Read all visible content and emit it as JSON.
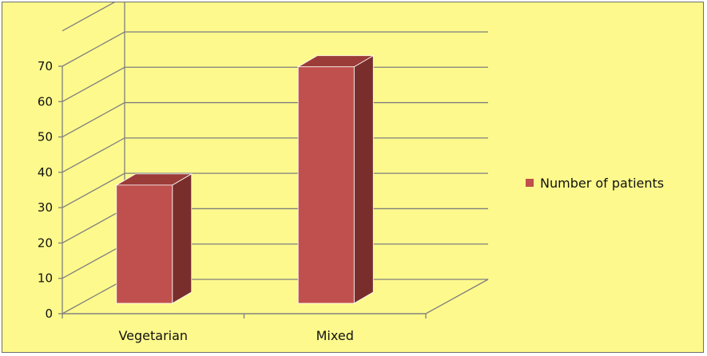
{
  "chart_data": {
    "type": "bar",
    "style": "3d-column",
    "categories": [
      "Vegetarian",
      "Mixed"
    ],
    "series": [
      {
        "name": "Number of patients",
        "values": [
          34,
          68
        ]
      }
    ],
    "yticks": [
      "0",
      "10",
      "20",
      "30",
      "40",
      "50",
      "60",
      "70"
    ],
    "ylim": [
      0,
      70
    ],
    "grid": true,
    "legend_position": "right",
    "colors": {
      "background": "#fdf98c",
      "bar_front": "#c0504d",
      "bar_side": "#7a2e2c",
      "bar_top": "#9b3c39",
      "grid": "#7f7f7f",
      "floor_shadow": "#c8c260"
    }
  }
}
